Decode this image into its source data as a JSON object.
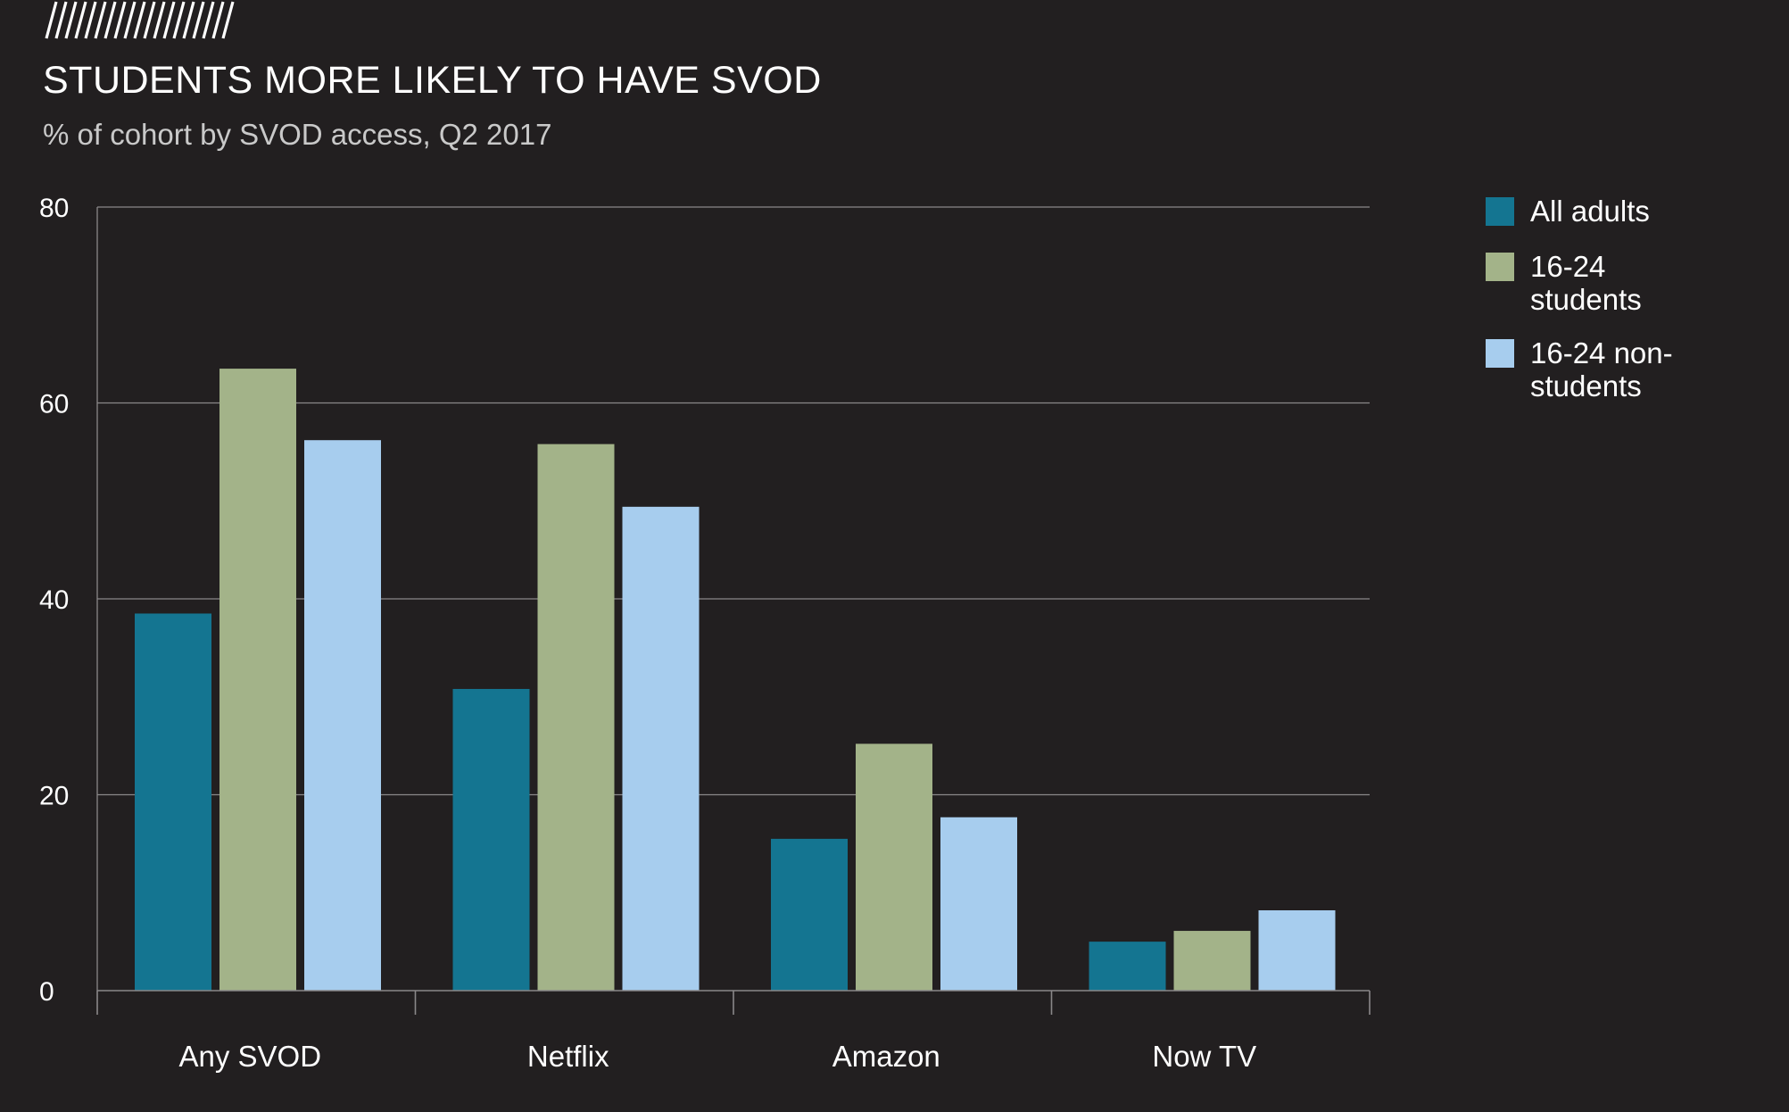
{
  "title": "STUDENTS MORE LIKELY TO HAVE SVOD",
  "subtitle": "% of cohort by SVOD access, Q2 2017",
  "chart_data": {
    "type": "bar",
    "title": "STUDENTS MORE LIKELY TO HAVE SVOD",
    "subtitle": "% of cohort by SVOD access, Q2 2017",
    "xlabel": "",
    "ylabel": "",
    "categories": [
      "Any SVOD",
      "Netflix",
      "Amazon",
      "Now TV"
    ],
    "ylim": [
      0,
      80
    ],
    "yticks": [
      0,
      20,
      40,
      60,
      80
    ],
    "grid": true,
    "legend_position": "right",
    "series": [
      {
        "name": "All adults",
        "legend_lines": [
          "All adults"
        ],
        "color": "#147591",
        "values": [
          38.5,
          30.8,
          15.5,
          5.0
        ]
      },
      {
        "name": "16-24 students",
        "legend_lines": [
          "16-24",
          "students"
        ],
        "color": "#a3b389",
        "values": [
          63.5,
          55.8,
          25.2,
          6.1
        ]
      },
      {
        "name": "16-24 non-students",
        "legend_lines": [
          "16-24 non-",
          "students"
        ],
        "color": "#a7cdee",
        "values": [
          56.2,
          49.4,
          17.7,
          8.2
        ]
      }
    ]
  }
}
